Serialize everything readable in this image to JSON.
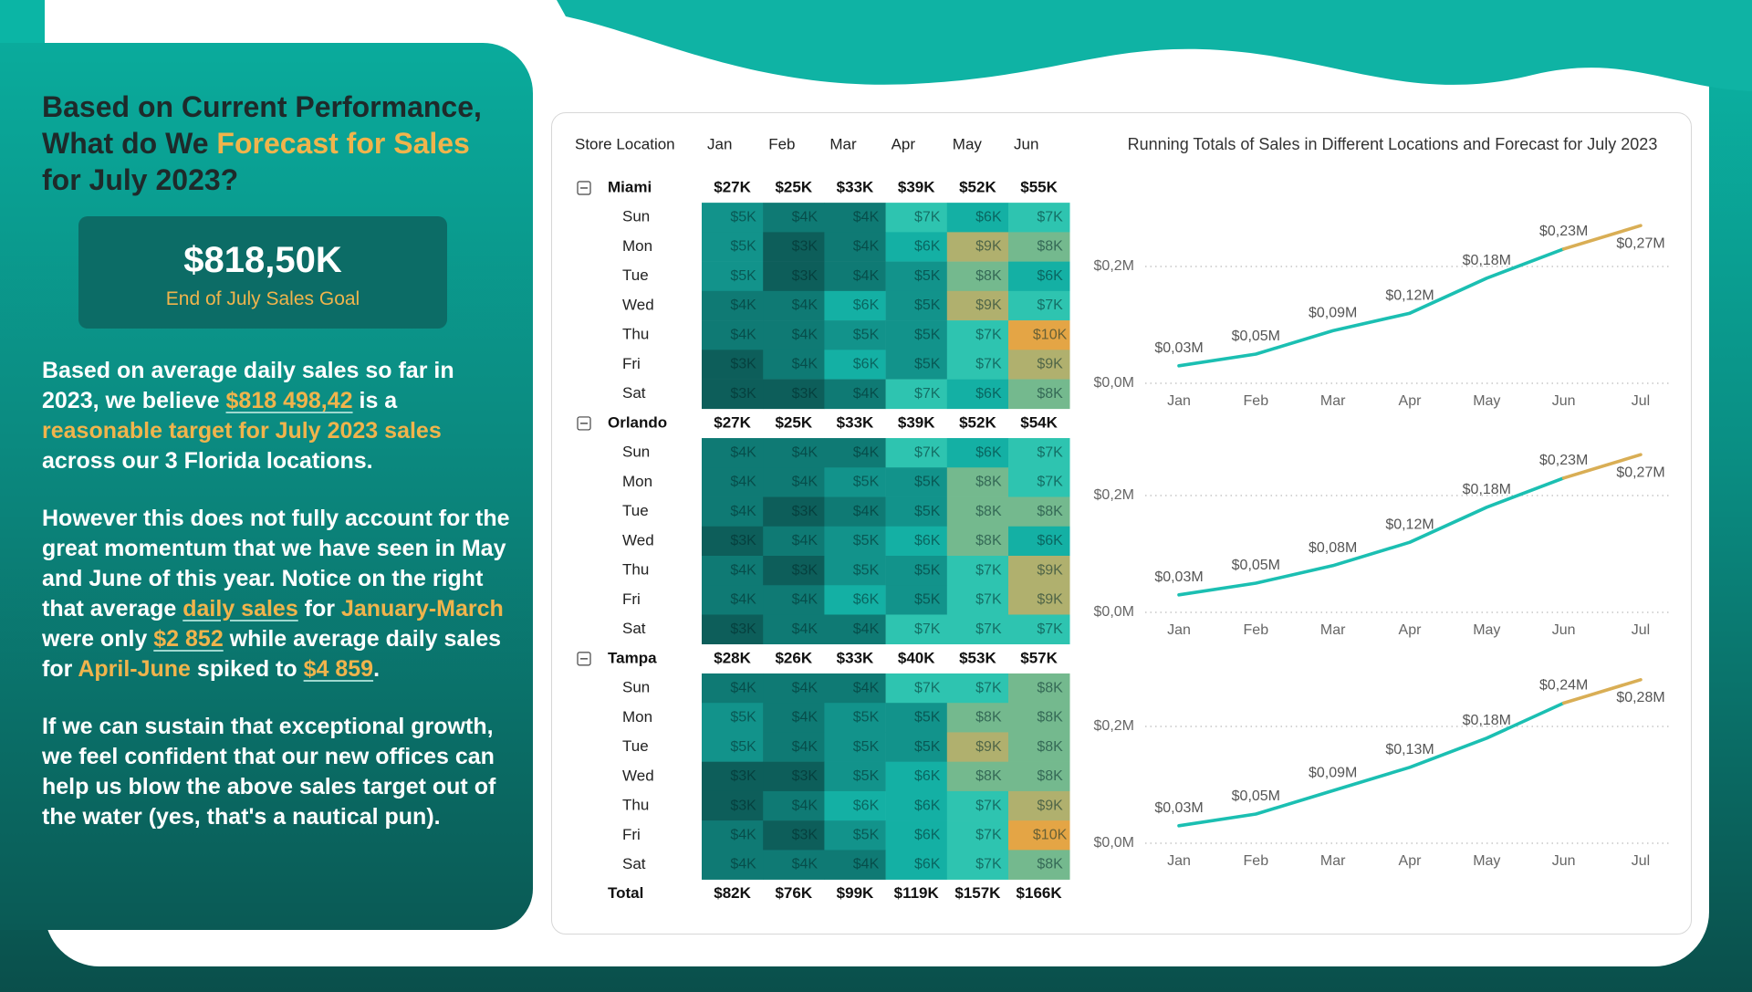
{
  "panel": {
    "title": [
      {
        "text": "Based on Current Performance, What do We "
      },
      {
        "text": "Forecast for Sales",
        "em": "gold"
      },
      {
        "text": " for July 2023?"
      }
    ],
    "goal": {
      "value": "$818,50K",
      "label": "End of July Sales Goal"
    },
    "paragraphs": [
      [
        {
          "text": "Based on average daily sales so far in 2023, we believe "
        },
        {
          "text": "$818 498,42",
          "em": "gold-link"
        },
        {
          "text": " is a "
        },
        {
          "text": "reasonable target for July 2023 sales",
          "em": "gold"
        },
        {
          "text": " across our 3 Florida locations."
        }
      ],
      [
        {
          "text": "However this does not fully account for the great momentum that we have seen in May and June of this year. Notice on the right that average "
        },
        {
          "text": "daily sales",
          "em": "gold-link"
        },
        {
          "text": " for "
        },
        {
          "text": "January-March",
          "em": "gold"
        },
        {
          "text": " were only "
        },
        {
          "text": "$2 852",
          "em": "gold-link"
        },
        {
          "text": " while average daily sales for "
        },
        {
          "text": "April-June",
          "em": "gold"
        },
        {
          "text": " spiked to "
        },
        {
          "text": "$4 859",
          "em": "gold-link"
        },
        {
          "text": "."
        }
      ],
      [
        {
          "text": "If we can sustain that exceptional growth, we feel confident that our new offices can help us blow the above sales target out of the water (yes, that's a nautical pun)."
        }
      ]
    ]
  },
  "matrix": {
    "header": [
      "Store Location",
      "Jan",
      "Feb",
      "Mar",
      "Apr",
      "May",
      "Jun"
    ],
    "heat_colors": [
      "#0d5e5a",
      "#0f7a74",
      "#12938b",
      "#14b0a4",
      "#2ec4b0",
      "#74b98e",
      "#b0b06e",
      "#e4a545"
    ],
    "groups": [
      {
        "name": "Miami",
        "totals": [
          "$27K",
          "$25K",
          "$33K",
          "$39K",
          "$52K",
          "$55K"
        ],
        "rows": [
          {
            "day": "Sun",
            "values": [
              5,
              4,
              4,
              7,
              6,
              7
            ],
            "value_labels": [
              "$5K",
              "$4K",
              "$4K",
              "$7K",
              "$6K",
              "$7K"
            ]
          },
          {
            "day": "Mon",
            "values": [
              5,
              3,
              4,
              6,
              9,
              8
            ],
            "value_labels": [
              "$5K",
              "$3K",
              "$4K",
              "$6K",
              "$9K",
              "$8K"
            ]
          },
          {
            "day": "Tue",
            "values": [
              5,
              3,
              4,
              5,
              8,
              6
            ],
            "value_labels": [
              "$5K",
              "$3K",
              "$4K",
              "$5K",
              "$8K",
              "$6K"
            ]
          },
          {
            "day": "Wed",
            "values": [
              4,
              4,
              6,
              5,
              9,
              7
            ],
            "value_labels": [
              "$4K",
              "$4K",
              "$6K",
              "$5K",
              "$9K",
              "$7K"
            ]
          },
          {
            "day": "Thu",
            "values": [
              4,
              4,
              5,
              5,
              7,
              10
            ],
            "value_labels": [
              "$4K",
              "$4K",
              "$5K",
              "$5K",
              "$7K",
              "$10K"
            ]
          },
          {
            "day": "Fri",
            "values": [
              3,
              4,
              6,
              5,
              7,
              9
            ],
            "value_labels": [
              "$3K",
              "$4K",
              "$6K",
              "$5K",
              "$7K",
              "$9K"
            ]
          },
          {
            "day": "Sat",
            "values": [
              3,
              3,
              4,
              7,
              6,
              8
            ],
            "value_labels": [
              "$3K",
              "$3K",
              "$4K",
              "$7K",
              "$6K",
              "$8K"
            ]
          }
        ]
      },
      {
        "name": "Orlando",
        "totals": [
          "$27K",
          "$25K",
          "$33K",
          "$39K",
          "$52K",
          "$54K"
        ],
        "rows": [
          {
            "day": "Sun",
            "values": [
              4,
              4,
              4,
              7,
              6,
              7
            ],
            "value_labels": [
              "$4K",
              "$4K",
              "$4K",
              "$7K",
              "$6K",
              "$7K"
            ]
          },
          {
            "day": "Mon",
            "values": [
              4,
              4,
              5,
              5,
              8,
              7
            ],
            "value_labels": [
              "$4K",
              "$4K",
              "$5K",
              "$5K",
              "$8K",
              "$7K"
            ]
          },
          {
            "day": "Tue",
            "values": [
              4,
              3,
              4,
              5,
              8,
              8
            ],
            "value_labels": [
              "$4K",
              "$3K",
              "$4K",
              "$5K",
              "$8K",
              "$8K"
            ]
          },
          {
            "day": "Wed",
            "values": [
              3,
              4,
              5,
              6,
              8,
              6
            ],
            "value_labels": [
              "$3K",
              "$4K",
              "$5K",
              "$6K",
              "$8K",
              "$6K"
            ]
          },
          {
            "day": "Thu",
            "values": [
              4,
              3,
              5,
              5,
              7,
              9
            ],
            "value_labels": [
              "$4K",
              "$3K",
              "$5K",
              "$5K",
              "$7K",
              "$9K"
            ]
          },
          {
            "day": "Fri",
            "values": [
              4,
              4,
              6,
              5,
              7,
              9
            ],
            "value_labels": [
              "$4K",
              "$4K",
              "$6K",
              "$5K",
              "$7K",
              "$9K"
            ]
          },
          {
            "day": "Sat",
            "values": [
              3,
              4,
              4,
              7,
              7,
              7
            ],
            "value_labels": [
              "$3K",
              "$4K",
              "$4K",
              "$7K",
              "$7K",
              "$7K"
            ]
          }
        ]
      },
      {
        "name": "Tampa",
        "totals": [
          "$28K",
          "$26K",
          "$33K",
          "$40K",
          "$53K",
          "$57K"
        ],
        "rows": [
          {
            "day": "Sun",
            "values": [
              4,
              4,
              4,
              7,
              7,
              8
            ],
            "value_labels": [
              "$4K",
              "$4K",
              "$4K",
              "$7K",
              "$7K",
              "$8K"
            ]
          },
          {
            "day": "Mon",
            "values": [
              5,
              4,
              5,
              5,
              8,
              8
            ],
            "value_labels": [
              "$5K",
              "$4K",
              "$5K",
              "$5K",
              "$8K",
              "$8K"
            ]
          },
          {
            "day": "Tue",
            "values": [
              5,
              4,
              5,
              5,
              9,
              8
            ],
            "value_labels": [
              "$5K",
              "$4K",
              "$5K",
              "$5K",
              "$9K",
              "$8K"
            ]
          },
          {
            "day": "Wed",
            "values": [
              3,
              3,
              5,
              6,
              8,
              8
            ],
            "value_labels": [
              "$3K",
              "$3K",
              "$5K",
              "$6K",
              "$8K",
              "$8K"
            ]
          },
          {
            "day": "Thu",
            "values": [
              3,
              4,
              6,
              6,
              7,
              9
            ],
            "value_labels": [
              "$3K",
              "$4K",
              "$6K",
              "$6K",
              "$7K",
              "$9K"
            ]
          },
          {
            "day": "Fri",
            "values": [
              4,
              3,
              5,
              6,
              7,
              10
            ],
            "value_labels": [
              "$4K",
              "$3K",
              "$5K",
              "$6K",
              "$7K",
              "$10K"
            ]
          },
          {
            "day": "Sat",
            "values": [
              4,
              4,
              4,
              6,
              7,
              8
            ],
            "value_labels": [
              "$4K",
              "$4K",
              "$4K",
              "$6K",
              "$7K",
              "$8K"
            ]
          }
        ]
      }
    ],
    "total": {
      "label": "Total",
      "values": [
        "$82K",
        "$76K",
        "$99K",
        "$119K",
        "$157K",
        "$166K"
      ]
    }
  },
  "charts_title": "Running Totals of Sales in Different Locations and Forecast for July 2023",
  "chart_data": [
    {
      "type": "line",
      "categories": [
        "Jan",
        "Feb",
        "Mar",
        "Apr",
        "May",
        "Jun",
        "Jul"
      ],
      "values": [
        0.03,
        0.05,
        0.09,
        0.12,
        0.18,
        0.23,
        0.27
      ],
      "value_labels": [
        "$0,03M",
        "$0,05M",
        "$0,09M",
        "$0,12M",
        "$0,18M",
        "$0,23M",
        "$0,27M"
      ],
      "segment_colors": [
        "#1bbfb2",
        "#1bbfb2",
        "#1bbfb2",
        "#1bbfb2",
        "#1bbfb2",
        "#d9ae55"
      ],
      "ylim": [
        0,
        0.3
      ],
      "yticks": [
        {
          "value": 0,
          "label": "$0,0M"
        },
        {
          "value": 0.2,
          "label": "$0,2M"
        }
      ],
      "grid": true
    },
    {
      "type": "line",
      "categories": [
        "Jan",
        "Feb",
        "Mar",
        "Apr",
        "May",
        "Jun",
        "Jul"
      ],
      "values": [
        0.03,
        0.05,
        0.08,
        0.12,
        0.18,
        0.23,
        0.27
      ],
      "value_labels": [
        "$0,03M",
        "$0,05M",
        "$0,08M",
        "$0,12M",
        "$0,18M",
        "$0,23M",
        "$0,27M"
      ],
      "segment_colors": [
        "#1bbfb2",
        "#1bbfb2",
        "#1bbfb2",
        "#1bbfb2",
        "#1bbfb2",
        "#d9ae55"
      ],
      "ylim": [
        0,
        0.3
      ],
      "yticks": [
        {
          "value": 0,
          "label": "$0,0M"
        },
        {
          "value": 0.2,
          "label": "$0,2M"
        }
      ],
      "grid": true
    },
    {
      "type": "line",
      "categories": [
        "Jan",
        "Feb",
        "Mar",
        "Apr",
        "May",
        "Jun",
        "Jul"
      ],
      "values": [
        0.03,
        0.05,
        0.09,
        0.13,
        0.18,
        0.24,
        0.28
      ],
      "value_labels": [
        "$0,03M",
        "$0,05M",
        "$0,09M",
        "$0,13M",
        "$0,18M",
        "$0,24M",
        "$0,28M"
      ],
      "segment_colors": [
        "#1bbfb2",
        "#1bbfb2",
        "#1bbfb2",
        "#1bbfb2",
        "#1bbfb2",
        "#d9ae55"
      ],
      "ylim": [
        0,
        0.3
      ],
      "yticks": [
        {
          "value": 0,
          "label": "$0,0M"
        },
        {
          "value": 0.2,
          "label": "$0,2M"
        }
      ],
      "grid": true
    }
  ]
}
